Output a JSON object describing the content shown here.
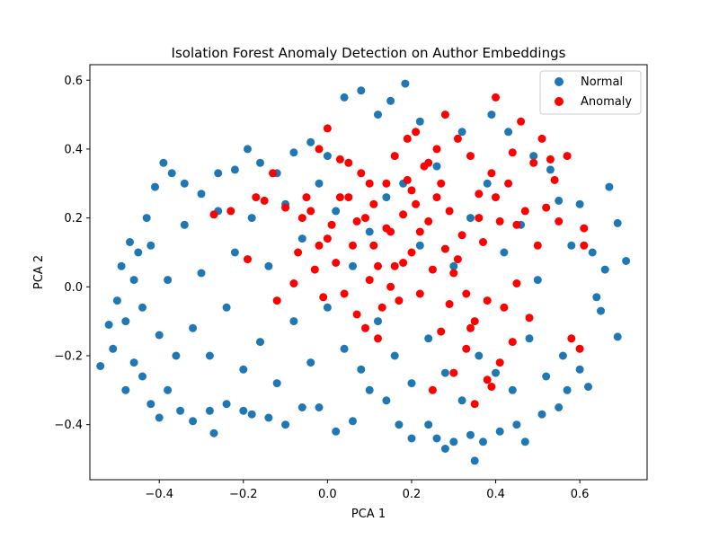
{
  "chart_data": {
    "type": "scatter",
    "title": "Isolation Forest Anomaly Detection on Author Embeddings",
    "xlabel": "PCA 1",
    "ylabel": "PCA 2",
    "xlim": [
      -0.565,
      0.76
    ],
    "ylim": [
      -0.56,
      0.645
    ],
    "xticks": [
      -0.4,
      -0.2,
      0.0,
      0.2,
      0.4,
      0.6
    ],
    "xtick_labels": [
      "−0.4",
      "−0.2",
      "0.0",
      "0.2",
      "0.4",
      "0.6"
    ],
    "yticks": [
      -0.4,
      -0.2,
      0.0,
      0.2,
      0.4,
      0.6
    ],
    "ytick_labels": [
      "−0.4",
      "−0.2",
      "0.0",
      "0.2",
      "0.4",
      "0.6"
    ],
    "grid": false,
    "legend_position": "top-right",
    "series": [
      {
        "name": "Normal",
        "color": "#1f77b4",
        "points": [
          [
            -0.54,
            -0.23
          ],
          [
            -0.52,
            -0.11
          ],
          [
            -0.51,
            -0.18
          ],
          [
            -0.5,
            -0.04
          ],
          [
            -0.49,
            0.06
          ],
          [
            -0.48,
            -0.3
          ],
          [
            -0.47,
            0.13
          ],
          [
            -0.46,
            -0.22
          ],
          [
            -0.45,
            0.1
          ],
          [
            -0.44,
            -0.26
          ],
          [
            -0.43,
            0.2
          ],
          [
            -0.42,
            -0.34
          ],
          [
            -0.41,
            0.29
          ],
          [
            -0.4,
            -0.38
          ],
          [
            -0.39,
            0.36
          ],
          [
            -0.38,
            -0.3
          ],
          [
            -0.37,
            0.33
          ],
          [
            -0.35,
            -0.36
          ],
          [
            -0.34,
            0.3
          ],
          [
            -0.32,
            -0.39
          ],
          [
            -0.3,
            0.27
          ],
          [
            -0.28,
            -0.36
          ],
          [
            -0.27,
            -0.425
          ],
          [
            -0.26,
            0.33
          ],
          [
            -0.24,
            -0.34
          ],
          [
            -0.22,
            0.34
          ],
          [
            -0.2,
            -0.36
          ],
          [
            -0.19,
            0.4
          ],
          [
            -0.18,
            -0.37
          ],
          [
            -0.16,
            0.36
          ],
          [
            -0.14,
            -0.38
          ],
          [
            -0.12,
            0.33
          ],
          [
            -0.1,
            -0.4
          ],
          [
            -0.08,
            0.39
          ],
          [
            -0.06,
            -0.35
          ],
          [
            -0.04,
            0.42
          ],
          [
            -0.02,
            -0.35
          ],
          [
            0.0,
            0.38
          ],
          [
            0.02,
            -0.42
          ],
          [
            0.04,
            0.55
          ],
          [
            0.06,
            -0.39
          ],
          [
            0.08,
            0.57
          ],
          [
            0.1,
            -0.3
          ],
          [
            0.12,
            0.5
          ],
          [
            0.14,
            -0.33
          ],
          [
            0.15,
            0.54
          ],
          [
            0.17,
            -0.4
          ],
          [
            0.185,
            0.59
          ],
          [
            0.2,
            -0.44
          ],
          [
            0.22,
            0.48
          ],
          [
            0.24,
            -0.4
          ],
          [
            0.26,
            -0.44
          ],
          [
            0.28,
            -0.47
          ],
          [
            0.3,
            -0.45
          ],
          [
            0.32,
            0.45
          ],
          [
            0.34,
            -0.43
          ],
          [
            0.35,
            -0.505
          ],
          [
            0.37,
            -0.45
          ],
          [
            0.39,
            0.5
          ],
          [
            0.41,
            -0.42
          ],
          [
            0.43,
            0.45
          ],
          [
            0.45,
            -0.4
          ],
          [
            0.47,
            -0.45
          ],
          [
            0.49,
            0.38
          ],
          [
            0.51,
            -0.37
          ],
          [
            0.53,
            0.34
          ],
          [
            0.55,
            -0.35
          ],
          [
            0.57,
            -0.3
          ],
          [
            0.6,
            0.24
          ],
          [
            0.62,
            -0.29
          ],
          [
            0.63,
            0.1
          ],
          [
            0.65,
            -0.07
          ],
          [
            0.67,
            0.29
          ],
          [
            0.69,
            -0.145
          ],
          [
            0.69,
            0.185
          ],
          [
            0.71,
            0.075
          ],
          [
            0.66,
            0.05
          ],
          [
            0.64,
            -0.03
          ],
          [
            0.6,
            -0.24
          ],
          [
            0.58,
            0.12
          ],
          [
            0.56,
            -0.2
          ],
          [
            0.55,
            0.25
          ],
          [
            0.52,
            -0.26
          ],
          [
            0.5,
            0.02
          ],
          [
            0.48,
            -0.15
          ],
          [
            0.46,
            0.18
          ],
          [
            0.44,
            -0.3
          ],
          [
            0.42,
            0.1
          ],
          [
            0.4,
            -0.25
          ],
          [
            0.38,
            0.3
          ],
          [
            0.36,
            -0.2
          ],
          [
            0.34,
            0.2
          ],
          [
            0.32,
            -0.33
          ],
          [
            0.3,
            0.06
          ],
          [
            0.28,
            -0.25
          ],
          [
            0.26,
            0.35
          ],
          [
            0.24,
            -0.15
          ],
          [
            0.22,
            0.12
          ],
          [
            0.2,
            -0.28
          ],
          [
            0.18,
            0.3
          ],
          [
            0.16,
            -0.2
          ],
          [
            0.14,
            0.26
          ],
          [
            0.12,
            -0.1
          ],
          [
            0.1,
            0.16
          ],
          [
            0.08,
            -0.24
          ],
          [
            0.06,
            0.06
          ],
          [
            0.04,
            -0.18
          ],
          [
            0.02,
            0.22
          ],
          [
            0.0,
            -0.06
          ],
          [
            -0.02,
            0.3
          ],
          [
            -0.04,
            -0.22
          ],
          [
            -0.06,
            0.14
          ],
          [
            -0.08,
            -0.1
          ],
          [
            -0.1,
            0.24
          ],
          [
            -0.12,
            -0.28
          ],
          [
            -0.14,
            0.06
          ],
          [
            -0.16,
            -0.16
          ],
          [
            -0.18,
            0.2
          ],
          [
            -0.2,
            -0.24
          ],
          [
            -0.22,
            0.1
          ],
          [
            -0.24,
            -0.06
          ],
          [
            -0.26,
            0.22
          ],
          [
            -0.28,
            -0.2
          ],
          [
            -0.3,
            0.04
          ],
          [
            -0.32,
            -0.12
          ],
          [
            -0.34,
            0.18
          ],
          [
            -0.36,
            -0.2
          ],
          [
            -0.38,
            0.02
          ],
          [
            -0.4,
            -0.14
          ],
          [
            -0.42,
            0.12
          ],
          [
            -0.44,
            -0.06
          ],
          [
            -0.46,
            0.02
          ],
          [
            -0.48,
            -0.1
          ]
        ]
      },
      {
        "name": "Anomaly",
        "color": "#ff0000",
        "points": [
          [
            -0.27,
            0.21
          ],
          [
            -0.23,
            0.22
          ],
          [
            -0.19,
            0.08
          ],
          [
            -0.17,
            0.26
          ],
          [
            -0.15,
            0.25
          ],
          [
            -0.13,
            0.33
          ],
          [
            -0.12,
            -0.04
          ],
          [
            -0.1,
            0.23
          ],
          [
            -0.08,
            0.01
          ],
          [
            -0.07,
            0.1
          ],
          [
            -0.05,
            0.26
          ],
          [
            -0.04,
            0.22
          ],
          [
            -0.03,
            0.05
          ],
          [
            -0.02,
            0.4
          ],
          [
            -0.01,
            -0.03
          ],
          [
            0.0,
            0.46
          ],
          [
            0.01,
            0.18
          ],
          [
            0.02,
            0.07
          ],
          [
            0.03,
            0.37
          ],
          [
            0.04,
            -0.02
          ],
          [
            0.05,
            0.26
          ],
          [
            0.06,
            0.12
          ],
          [
            0.07,
            -0.08
          ],
          [
            0.08,
            0.33
          ],
          [
            0.09,
            0.2
          ],
          [
            0.1,
            0.02
          ],
          [
            0.11,
            0.24
          ],
          [
            0.12,
            0.06
          ],
          [
            0.13,
            -0.06
          ],
          [
            0.14,
            0.3
          ],
          [
            0.15,
            0.16
          ],
          [
            0.16,
            0.38
          ],
          [
            0.17,
            -0.04
          ],
          [
            0.18,
            0.21
          ],
          [
            0.19,
            0.43
          ],
          [
            0.2,
            0.1
          ],
          [
            0.21,
            0.45
          ],
          [
            0.22,
            -0.02
          ],
          [
            0.23,
            0.35
          ],
          [
            0.24,
            0.19
          ],
          [
            0.25,
            0.05
          ],
          [
            0.26,
            0.4
          ],
          [
            0.27,
            -0.13
          ],
          [
            0.28,
            0.5
          ],
          [
            0.29,
            0.22
          ],
          [
            0.3,
            0.04
          ],
          [
            0.31,
            0.43
          ],
          [
            0.32,
            0.15
          ],
          [
            0.33,
            -0.18
          ],
          [
            0.34,
            0.38
          ],
          [
            0.35,
            -0.1
          ],
          [
            0.36,
            0.27
          ],
          [
            0.37,
            0.13
          ],
          [
            0.38,
            -0.27
          ],
          [
            0.39,
            0.33
          ],
          [
            0.4,
            0.55
          ],
          [
            0.41,
            0.19
          ],
          [
            0.42,
            -0.06
          ],
          [
            0.43,
            0.3
          ],
          [
            0.44,
            0.39
          ],
          [
            0.45,
            0.01
          ],
          [
            0.46,
            0.48
          ],
          [
            0.47,
            0.22
          ],
          [
            0.48,
            -0.09
          ],
          [
            0.49,
            0.36
          ],
          [
            0.5,
            0.12
          ],
          [
            0.51,
            0.43
          ],
          [
            0.52,
            0.23
          ],
          [
            0.53,
            0.37
          ],
          [
            0.54,
            0.31
          ],
          [
            0.55,
            0.19
          ],
          [
            0.57,
            0.38
          ],
          [
            0.58,
            -0.15
          ],
          [
            0.6,
            -0.18
          ],
          [
            0.61,
            0.17
          ],
          [
            0.61,
            0.12
          ],
          [
            0.39,
            -0.29
          ],
          [
            0.35,
            -0.34
          ],
          [
            0.41,
            -0.22
          ],
          [
            0.3,
            -0.25
          ],
          [
            0.25,
            -0.3
          ],
          [
            0.33,
            -0.02
          ],
          [
            0.28,
            0.11
          ],
          [
            0.2,
            0.28
          ],
          [
            0.15,
            0.0
          ],
          [
            0.1,
            0.3
          ],
          [
            0.05,
            0.36
          ],
          [
            0.0,
            0.14
          ],
          [
            -0.06,
            0.2
          ],
          [
            0.22,
            0.16
          ],
          [
            0.18,
            0.07
          ],
          [
            0.26,
            0.26
          ],
          [
            0.31,
            0.08
          ],
          [
            0.36,
            0.2
          ],
          [
            0.4,
            0.26
          ],
          [
            0.45,
            0.18
          ],
          [
            0.44,
            -0.16
          ],
          [
            0.38,
            -0.04
          ],
          [
            0.34,
            -0.12
          ],
          [
            0.29,
            -0.05
          ],
          [
            0.27,
            0.3
          ],
          [
            0.24,
            0.36
          ],
          [
            0.19,
            0.31
          ],
          [
            0.14,
            0.17
          ],
          [
            0.11,
            0.12
          ],
          [
            0.07,
            0.19
          ],
          [
            0.03,
            0.26
          ],
          [
            -0.02,
            0.12
          ],
          [
            0.12,
            -0.15
          ],
          [
            0.09,
            -0.12
          ],
          [
            0.16,
            0.06
          ],
          [
            0.21,
            0.24
          ]
        ]
      }
    ]
  }
}
